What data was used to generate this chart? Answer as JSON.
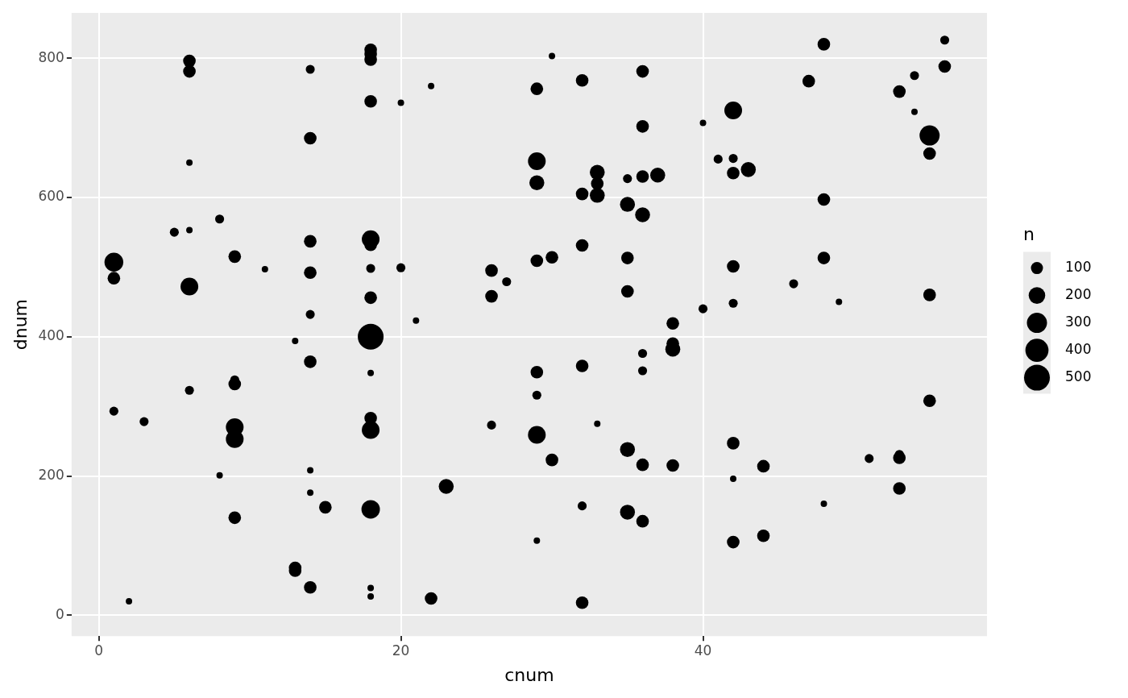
{
  "chart_data": {
    "type": "bubble",
    "xlabel": "cnum",
    "ylabel": "dnum",
    "legend_title": "n",
    "grid": true,
    "color": "#000000",
    "xlim": [
      -1.8,
      58.8
    ],
    "ylim": [
      -30,
      865
    ],
    "xticks": [
      0,
      20,
      40
    ],
    "yticks": [
      0,
      200,
      400,
      600,
      800
    ],
    "size_legend": [
      100,
      200,
      300,
      400,
      500
    ],
    "x": [
      1,
      1,
      1,
      2,
      3,
      5,
      6,
      6,
      6,
      6,
      6,
      6,
      8,
      8,
      9,
      9,
      9,
      9,
      9,
      9,
      11,
      13,
      13,
      13,
      14,
      14,
      14,
      14,
      14,
      14,
      14,
      14,
      14,
      15,
      18,
      18,
      18,
      18,
      18,
      18,
      18,
      18,
      18,
      18,
      18,
      18,
      18,
      18,
      18,
      20,
      20,
      21,
      22,
      22,
      23,
      26,
      26,
      26,
      27,
      29,
      29,
      29,
      29,
      29,
      29,
      29,
      29,
      30,
      30,
      30,
      32,
      32,
      32,
      32,
      32,
      32,
      33,
      33,
      33,
      33,
      35,
      35,
      35,
      35,
      35,
      35,
      36,
      36,
      36,
      36,
      36,
      36,
      36,
      36,
      37,
      38,
      38,
      38,
      38,
      40,
      40,
      41,
      42,
      42,
      42,
      42,
      42,
      42,
      42,
      42,
      43,
      44,
      44,
      46,
      47,
      48,
      48,
      48,
      48,
      49,
      51,
      53,
      53,
      53,
      53,
      54,
      54,
      55,
      55,
      55,
      55,
      56,
      56
    ],
    "values": [
      507,
      484,
      293,
      20,
      278,
      550,
      796,
      781,
      650,
      553,
      472,
      323,
      569,
      201,
      515,
      338,
      332,
      270,
      253,
      140,
      497,
      394,
      68,
      64,
      784,
      685,
      537,
      492,
      432,
      364,
      208,
      176,
      40,
      155,
      812,
      806,
      798,
      738,
      540,
      532,
      498,
      456,
      400,
      348,
      283,
      266,
      152,
      39,
      27,
      736,
      499,
      423,
      760,
      24,
      185,
      495,
      458,
      273,
      479,
      756,
      652,
      621,
      509,
      349,
      316,
      259,
      107,
      803,
      514,
      223,
      768,
      605,
      531,
      358,
      157,
      18,
      636,
      620,
      603,
      275,
      627,
      590,
      513,
      465,
      238,
      148,
      781,
      702,
      630,
      575,
      376,
      351,
      216,
      135,
      632,
      419,
      390,
      382,
      215,
      707,
      440,
      655,
      725,
      656,
      635,
      501,
      448,
      247,
      196,
      105,
      640,
      214,
      114,
      476,
      767,
      820,
      597,
      513,
      160,
      450,
      225,
      752,
      231,
      226,
      182,
      775,
      723,
      689,
      663,
      460,
      308,
      826,
      788
    ],
    "sizes": [
      260,
      110,
      50,
      20,
      50,
      50,
      110,
      110,
      20,
      20,
      230,
      50,
      50,
      20,
      110,
      50,
      110,
      230,
      230,
      110,
      20,
      20,
      110,
      110,
      50,
      110,
      110,
      110,
      50,
      110,
      20,
      20,
      110,
      110,
      110,
      110,
      110,
      110,
      230,
      110,
      50,
      110,
      500,
      20,
      110,
      230,
      250,
      20,
      20,
      20,
      50,
      20,
      20,
      110,
      160,
      110,
      110,
      50,
      50,
      110,
      230,
      160,
      110,
      110,
      50,
      230,
      20,
      20,
      110,
      110,
      110,
      110,
      110,
      110,
      50,
      110,
      160,
      110,
      160,
      20,
      50,
      160,
      110,
      110,
      160,
      160,
      110,
      110,
      110,
      160,
      50,
      50,
      110,
      110,
      160,
      110,
      110,
      160,
      110,
      20,
      50,
      50,
      230,
      50,
      110,
      110,
      50,
      110,
      20,
      110,
      160,
      110,
      110,
      50,
      110,
      110,
      110,
      110,
      20,
      20,
      50,
      110,
      50,
      110,
      110,
      50,
      20,
      300,
      110,
      110,
      110,
      50,
      110
    ]
  }
}
